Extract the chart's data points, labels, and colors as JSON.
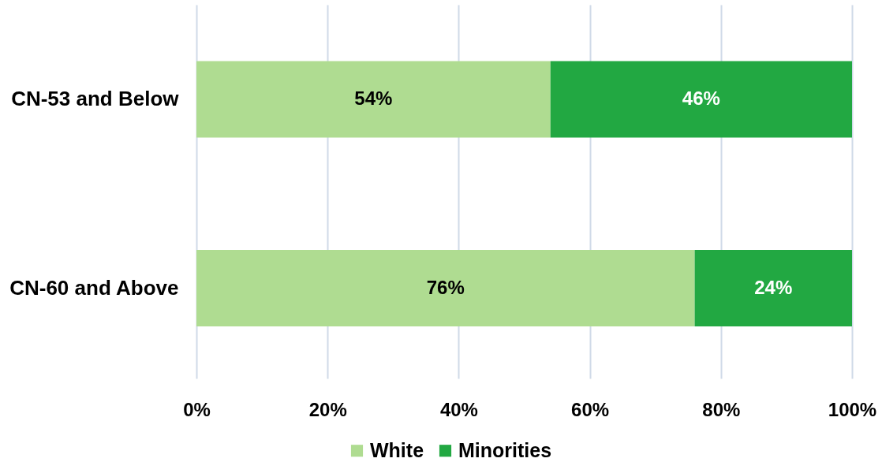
{
  "chart_data": {
    "type": "bar",
    "orientation": "horizontal",
    "stacked": true,
    "categories": [
      "CN-53 and Below",
      "CN-60 and Above"
    ],
    "series": [
      {
        "name": "White",
        "color": "#afdc91",
        "values": [
          54,
          76
        ],
        "value_labels": [
          "54%",
          "76%"
        ]
      },
      {
        "name": "Minorities",
        "color": "#22a842",
        "values": [
          46,
          24
        ],
        "value_labels": [
          "46%",
          "24%"
        ]
      }
    ],
    "xlim": [
      0,
      100
    ],
    "xticks": [
      {
        "value": 0,
        "label": "0%"
      },
      {
        "value": 20,
        "label": "20%"
      },
      {
        "value": 40,
        "label": "40%"
      },
      {
        "value": 60,
        "label": "60%"
      },
      {
        "value": 80,
        "label": "80%"
      },
      {
        "value": 100,
        "label": "100%"
      }
    ],
    "grid": "x",
    "legend": "bottom"
  }
}
